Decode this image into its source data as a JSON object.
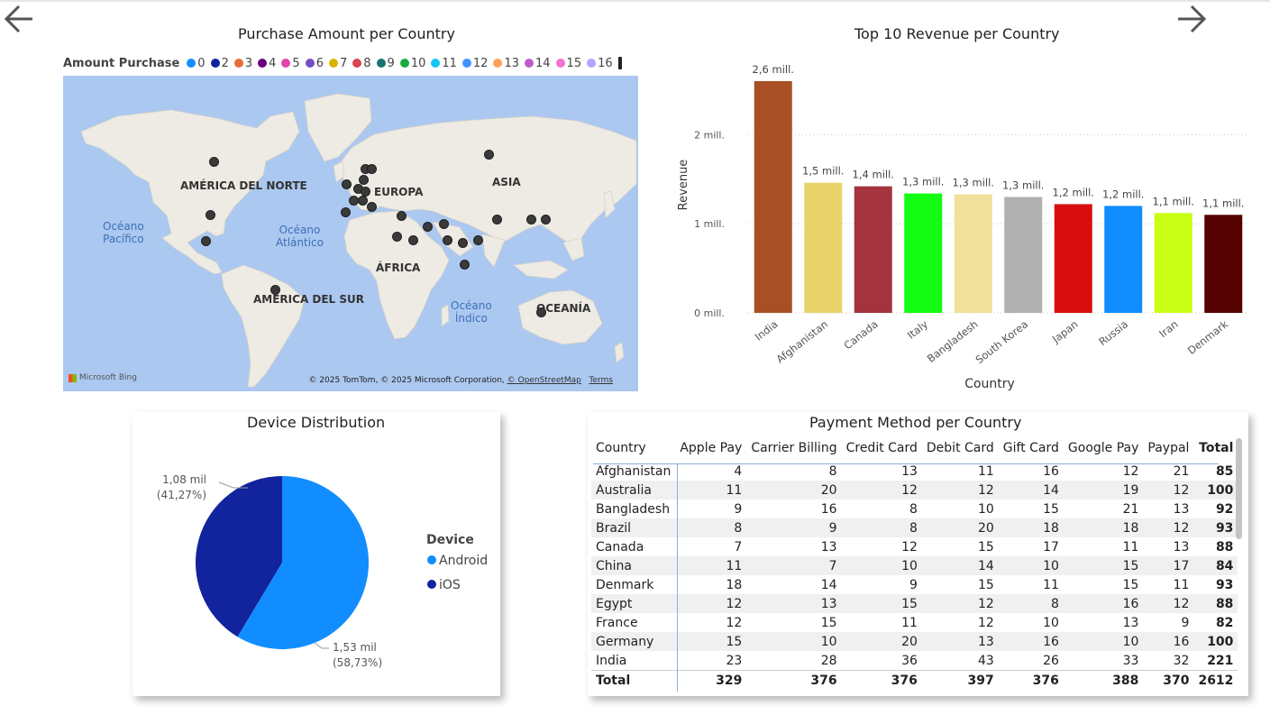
{
  "map": {
    "title": "Purchase Amount per Country",
    "legend_title": "Amount Purchase",
    "legend": [
      {
        "label": "0",
        "color": "#118dff"
      },
      {
        "label": "2",
        "color": "#12239e"
      },
      {
        "label": "3",
        "color": "#e66c37"
      },
      {
        "label": "4",
        "color": "#6b007b"
      },
      {
        "label": "5",
        "color": "#e044a7"
      },
      {
        "label": "6",
        "color": "#744ec2"
      },
      {
        "label": "7",
        "color": "#d9b300"
      },
      {
        "label": "8",
        "color": "#d64550"
      },
      {
        "label": "9",
        "color": "#197278"
      },
      {
        "label": "10",
        "color": "#1aab40"
      },
      {
        "label": "11",
        "color": "#15c6f4"
      },
      {
        "label": "12",
        "color": "#4092ff"
      },
      {
        "label": "13",
        "color": "#ffa058"
      },
      {
        "label": "14",
        "color": "#be5dc9"
      },
      {
        "label": "15",
        "color": "#f472d0"
      },
      {
        "label": "16",
        "color": "#b5a1ff"
      }
    ],
    "labels": {
      "north_america": "AMÉRICA DEL NORTE",
      "europe": "EUROPA",
      "asia": "ASIA",
      "africa": "ÁFRICA",
      "south_america": "AMÉRICA DEL SUR",
      "oceania": "OCEANÍA",
      "pacific": "Océano\nPacífico",
      "atlantic": "Océano\nAtlántico",
      "indian": "Océano\nÍndico"
    },
    "bing": "Microsoft Bing",
    "attribution": "© 2025 TomTom, © 2025 Microsoft Corporation,",
    "attribution_link": "© OpenStreetMap",
    "terms": "Terms"
  },
  "revenue": {
    "title": "Top 10 Revenue per Country",
    "chart_data": {
      "type": "bar",
      "xlabel": "Country",
      "ylabel": "Revenue",
      "ylim": [
        0,
        2600000
      ],
      "yticks": [
        {
          "value": 0,
          "label": "0 mill."
        },
        {
          "value": 1000000,
          "label": "1 mill."
        },
        {
          "value": 2000000,
          "label": "2 mill."
        }
      ],
      "categories": [
        "India",
        "Afghanistan",
        "Canada",
        "Italy",
        "Bangladesh",
        "South Korea",
        "Japan",
        "Russia",
        "Iran",
        "Denmark"
      ],
      "values": [
        2600000,
        1460000,
        1420000,
        1340000,
        1330000,
        1300000,
        1220000,
        1200000,
        1120000,
        1100000
      ],
      "labels": [
        "2,6 mill.",
        "1,5 mill.",
        "1,4 mill.",
        "1,3 mill.",
        "1,3 mill.",
        "1,3 mill.",
        "1,2 mill.",
        "1,2 mill.",
        "1,1 mill.",
        "1,1 mill."
      ],
      "colors": [
        "#a94f25",
        "#e8d36a",
        "#a3333e",
        "#13fc13",
        "#f0e09a",
        "#b0b0b0",
        "#d80d0d",
        "#118dff",
        "#c8ff14",
        "#560202"
      ]
    }
  },
  "device": {
    "title": "Device Distribution",
    "legend_title": "Device",
    "chart_data": {
      "type": "pie",
      "slices": [
        {
          "name": "Android",
          "value": 1530,
          "label": "1,53 mil",
          "pct": "(58,73%)",
          "color": "#118dff"
        },
        {
          "name": "iOS",
          "value": 1080,
          "label": "1,08 mil",
          "pct": "(41,27%)",
          "color": "#12239e"
        }
      ]
    }
  },
  "payment": {
    "title": "Payment Method per Country",
    "columns": [
      "Country",
      "Apple Pay",
      "Carrier Billing",
      "Credit Card",
      "Debit Card",
      "Gift Card",
      "Google Pay",
      "Paypal",
      "Total"
    ],
    "rows": [
      [
        "Afghanistan",
        "4",
        "8",
        "13",
        "11",
        "16",
        "12",
        "21",
        "85"
      ],
      [
        "Australia",
        "11",
        "20",
        "12",
        "12",
        "14",
        "19",
        "12",
        "100"
      ],
      [
        "Bangladesh",
        "9",
        "16",
        "8",
        "10",
        "15",
        "21",
        "13",
        "92"
      ],
      [
        "Brazil",
        "8",
        "9",
        "8",
        "20",
        "18",
        "18",
        "12",
        "93"
      ],
      [
        "Canada",
        "7",
        "13",
        "12",
        "15",
        "17",
        "11",
        "13",
        "88"
      ],
      [
        "China",
        "11",
        "7",
        "10",
        "14",
        "10",
        "15",
        "17",
        "84"
      ],
      [
        "Denmark",
        "18",
        "14",
        "9",
        "15",
        "11",
        "15",
        "11",
        "93"
      ],
      [
        "Egypt",
        "12",
        "13",
        "15",
        "12",
        "8",
        "16",
        "12",
        "88"
      ],
      [
        "France",
        "12",
        "15",
        "11",
        "12",
        "10",
        "13",
        "9",
        "82"
      ],
      [
        "Germany",
        "15",
        "10",
        "20",
        "13",
        "16",
        "10",
        "16",
        "100"
      ],
      [
        "India",
        "23",
        "28",
        "36",
        "43",
        "26",
        "33",
        "32",
        "221"
      ]
    ],
    "total": [
      "Total",
      "329",
      "376",
      "376",
      "397",
      "376",
      "388",
      "370",
      "2612"
    ]
  }
}
